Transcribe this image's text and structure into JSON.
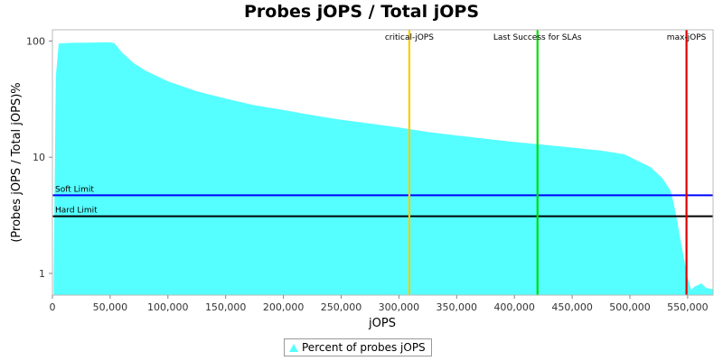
{
  "chart_data": {
    "type": "area",
    "title": "Probes jOPS / Total jOPS",
    "xlabel": "jOPS",
    "ylabel": "(Probes jOPS / Total jOPS)%",
    "y_scale": "log",
    "xlim": [
      0,
      572000
    ],
    "ylim": [
      0.65,
      125
    ],
    "grid": false,
    "legend_position": "bottom-center",
    "x_ticks": [
      0,
      50000,
      100000,
      150000,
      200000,
      250000,
      300000,
      350000,
      400000,
      450000,
      500000,
      550000
    ],
    "x_tick_labels": [
      "0",
      "50,000",
      "100,000",
      "150,000",
      "200,000",
      "250,000",
      "300,000",
      "350,000",
      "400,000",
      "450,000",
      "500,000",
      "550,000"
    ],
    "y_ticks": [
      1,
      10,
      100
    ],
    "y_tick_labels": [
      "1",
      "10",
      "100"
    ],
    "series": [
      {
        "name": "Percent of probes jOPS",
        "color": "#55ffff",
        "x": [
          1000,
          3000,
          5500,
          15000,
          30000,
          50000,
          54000,
          60000,
          70000,
          80000,
          100000,
          125000,
          150000,
          175000,
          200000,
          225000,
          250000,
          275000,
          300000,
          325000,
          350000,
          375000,
          400000,
          425000,
          450000,
          475000,
          495000,
          505000,
          518000,
          528000,
          535000,
          538000,
          541000,
          544000,
          547000,
          550000,
          553000,
          556000,
          562000,
          566000,
          572000
        ],
        "y": [
          0.8,
          50,
          95,
          96.5,
          97,
          97.5,
          95,
          80,
          65,
          56,
          45,
          37,
          32,
          28,
          25.5,
          23,
          21,
          19.5,
          18,
          16.5,
          15.4,
          14.4,
          13.5,
          12.8,
          12.1,
          11.4,
          10.6,
          9.5,
          8.2,
          6.6,
          5.2,
          4.0,
          2.8,
          1.9,
          1.3,
          0.92,
          0.72,
          0.77,
          0.82,
          0.75,
          0.73
        ]
      }
    ],
    "horizontal_lines": [
      {
        "label": "Soft Limit",
        "value": 4.7,
        "color": "#0000ff"
      },
      {
        "label": "Hard Limit",
        "value": 3.1,
        "color": "#000000"
      }
    ],
    "vertical_lines": [
      {
        "label": "critical-jOPS",
        "value": 309000,
        "color": "#ffcc00"
      },
      {
        "label": "Last Success for SLAs",
        "value": 420000,
        "color": "#00e000"
      },
      {
        "label": "max-jOPS",
        "value": 549000,
        "color": "#e00000"
      }
    ]
  }
}
